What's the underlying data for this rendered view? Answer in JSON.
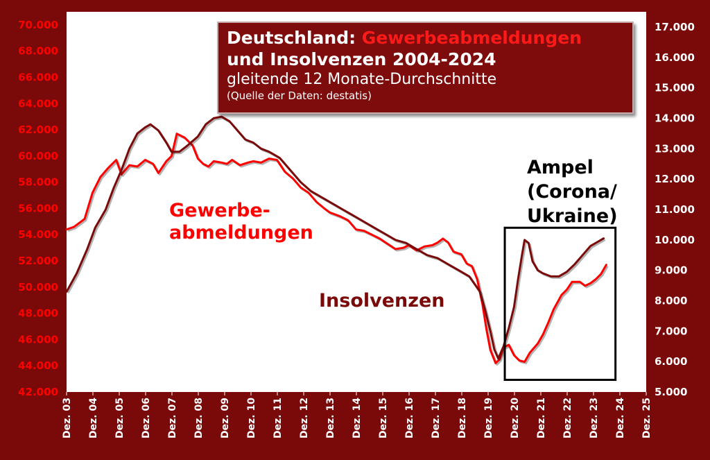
{
  "chart_data": {
    "type": "line",
    "title": "Deutschland: Gewerbeabmeldungen und Insolvenzen 2004-2024",
    "title_parts": {
      "prefix": "Deutschland: ",
      "highlight": "Gewerbeabmeldungen",
      "line2": "und Insolvenzen 2004-2024"
    },
    "subtitle": "gleitende 12 Monate-Durchschnitte",
    "source": "(Quelle der Daten: destatis)",
    "x_tick_labels": [
      "Dez. 03",
      "Dez. 04",
      "Dez. 05",
      "Dez. 06",
      "Dez. 07",
      "Dez. 08",
      "Dez. 09",
      "Dez. 10",
      "Dez. 11",
      "Dez. 12",
      "Dez. 13",
      "Dez. 14",
      "Dez. 15",
      "Dez. 16",
      "Dez. 17",
      "Dez. 18",
      "Dez. 19",
      "Dez. 20",
      "Dez. 21",
      "Dez. 22",
      "Dez. 23",
      "Dez. 24",
      "Dez. 25"
    ],
    "x_range": [
      2003.917,
      2025.917
    ],
    "y_left": {
      "range": [
        42000,
        71000
      ],
      "ticks": [
        42000,
        44000,
        46000,
        48000,
        50000,
        52000,
        54000,
        56000,
        58000,
        60000,
        62000,
        64000,
        66000,
        68000,
        70000
      ],
      "tick_labels": [
        "42.000",
        "44.000",
        "46.000",
        "48.000",
        "50.000",
        "52.000",
        "54.000",
        "56.000",
        "58.000",
        "60.000",
        "62.000",
        "64.000",
        "66.000",
        "68.000",
        "70.000"
      ]
    },
    "y_right": {
      "range": [
        5000,
        17500
      ],
      "ticks": [
        5000,
        6000,
        7000,
        8000,
        9000,
        10000,
        11000,
        12000,
        13000,
        14000,
        15000,
        16000,
        17000
      ],
      "tick_labels": [
        "5.000",
        "6.000",
        "7.000",
        "8.000",
        "9.000",
        "10.000",
        "11.000",
        "12.000",
        "13.000",
        "14.000",
        "15.000",
        "16.000",
        "17.000"
      ]
    },
    "series": [
      {
        "name": "Gewerbeabmeldungen",
        "axis": "left",
        "color": "#ff0000",
        "points": [
          [
            2003.92,
            54400
          ],
          [
            2004.2,
            54600
          ],
          [
            2004.6,
            55200
          ],
          [
            2004.9,
            57200
          ],
          [
            2005.2,
            58400
          ],
          [
            2005.5,
            59100
          ],
          [
            2005.8,
            59700
          ],
          [
            2006.0,
            58600
          ],
          [
            2006.3,
            59300
          ],
          [
            2006.6,
            59200
          ],
          [
            2006.9,
            59700
          ],
          [
            2007.2,
            59400
          ],
          [
            2007.4,
            58700
          ],
          [
            2007.7,
            59600
          ],
          [
            2007.9,
            60000
          ],
          [
            2008.1,
            61700
          ],
          [
            2008.4,
            61400
          ],
          [
            2008.7,
            60800
          ],
          [
            2008.9,
            59800
          ],
          [
            2009.1,
            59400
          ],
          [
            2009.3,
            59200
          ],
          [
            2009.5,
            59600
          ],
          [
            2009.8,
            59500
          ],
          [
            2010.0,
            59400
          ],
          [
            2010.2,
            59700
          ],
          [
            2010.5,
            59300
          ],
          [
            2010.8,
            59500
          ],
          [
            2011.0,
            59600
          ],
          [
            2011.3,
            59500
          ],
          [
            2011.6,
            59800
          ],
          [
            2011.9,
            59700
          ],
          [
            2012.2,
            58800
          ],
          [
            2012.5,
            58300
          ],
          [
            2012.8,
            57600
          ],
          [
            2013.1,
            57200
          ],
          [
            2013.4,
            56500
          ],
          [
            2013.7,
            56000
          ],
          [
            2013.9,
            55700
          ],
          [
            2014.3,
            55400
          ],
          [
            2014.6,
            55100
          ],
          [
            2014.9,
            54400
          ],
          [
            2015.2,
            54300
          ],
          [
            2015.5,
            54000
          ],
          [
            2015.8,
            53700
          ],
          [
            2016.1,
            53300
          ],
          [
            2016.4,
            52900
          ],
          [
            2016.7,
            53000
          ],
          [
            2016.9,
            53200
          ],
          [
            2017.2,
            52800
          ],
          [
            2017.5,
            53100
          ],
          [
            2017.8,
            53200
          ],
          [
            2018.0,
            53400
          ],
          [
            2018.2,
            53700
          ],
          [
            2018.4,
            53400
          ],
          [
            2018.6,
            52700
          ],
          [
            2018.9,
            52500
          ],
          [
            2019.1,
            51800
          ],
          [
            2019.3,
            51600
          ],
          [
            2019.5,
            50600
          ],
          [
            2019.7,
            48700
          ],
          [
            2019.85,
            46800
          ],
          [
            2020.0,
            45200
          ],
          [
            2020.2,
            44200
          ],
          [
            2020.35,
            44500
          ],
          [
            2020.5,
            45400
          ],
          [
            2020.7,
            45600
          ],
          [
            2020.9,
            44800
          ],
          [
            2021.1,
            44400
          ],
          [
            2021.3,
            44300
          ],
          [
            2021.5,
            45000
          ],
          [
            2021.8,
            45700
          ],
          [
            2022.0,
            46400
          ],
          [
            2022.2,
            47300
          ],
          [
            2022.4,
            48300
          ],
          [
            2022.7,
            49400
          ],
          [
            2022.9,
            49800
          ],
          [
            2023.1,
            50400
          ],
          [
            2023.4,
            50400
          ],
          [
            2023.6,
            50100
          ],
          [
            2023.8,
            50300
          ],
          [
            2024.0,
            50600
          ],
          [
            2024.2,
            51000
          ],
          [
            2024.4,
            51700
          ]
        ]
      },
      {
        "name": "Insolvenzen",
        "axis": "right",
        "color": "#7a0a0a",
        "points": [
          [
            2003.92,
            8300
          ],
          [
            2004.3,
            8900
          ],
          [
            2004.7,
            9700
          ],
          [
            2005.0,
            10400
          ],
          [
            2005.4,
            11000
          ],
          [
            2005.7,
            11700
          ],
          [
            2006.0,
            12300
          ],
          [
            2006.3,
            13000
          ],
          [
            2006.6,
            13500
          ],
          [
            2006.9,
            13700
          ],
          [
            2007.1,
            13800
          ],
          [
            2007.4,
            13600
          ],
          [
            2007.7,
            13200
          ],
          [
            2007.9,
            12900
          ],
          [
            2008.2,
            12900
          ],
          [
            2008.5,
            13100
          ],
          [
            2008.9,
            13400
          ],
          [
            2009.2,
            13800
          ],
          [
            2009.5,
            14000
          ],
          [
            2009.8,
            14050
          ],
          [
            2010.1,
            13900
          ],
          [
            2010.4,
            13600
          ],
          [
            2010.7,
            13300
          ],
          [
            2011.0,
            13200
          ],
          [
            2011.3,
            13000
          ],
          [
            2011.6,
            12900
          ],
          [
            2012.0,
            12700
          ],
          [
            2012.4,
            12300
          ],
          [
            2012.8,
            11900
          ],
          [
            2013.2,
            11600
          ],
          [
            2013.6,
            11400
          ],
          [
            2014.0,
            11200
          ],
          [
            2014.4,
            11000
          ],
          [
            2014.8,
            10800
          ],
          [
            2015.2,
            10600
          ],
          [
            2015.6,
            10400
          ],
          [
            2016.0,
            10200
          ],
          [
            2016.4,
            10000
          ],
          [
            2016.8,
            9900
          ],
          [
            2017.2,
            9700
          ],
          [
            2017.6,
            9500
          ],
          [
            2018.0,
            9400
          ],
          [
            2018.4,
            9200
          ],
          [
            2018.8,
            9000
          ],
          [
            2019.2,
            8800
          ],
          [
            2019.6,
            8300
          ],
          [
            2019.8,
            7700
          ],
          [
            2020.0,
            7000
          ],
          [
            2020.15,
            6400
          ],
          [
            2020.3,
            6100
          ],
          [
            2020.5,
            6500
          ],
          [
            2020.7,
            7100
          ],
          [
            2020.9,
            7800
          ],
          [
            2021.05,
            8700
          ],
          [
            2021.2,
            9500
          ],
          [
            2021.3,
            10000
          ],
          [
            2021.45,
            9900
          ],
          [
            2021.6,
            9300
          ],
          [
            2021.8,
            9000
          ],
          [
            2022.0,
            8900
          ],
          [
            2022.3,
            8800
          ],
          [
            2022.6,
            8800
          ],
          [
            2022.9,
            8950
          ],
          [
            2023.2,
            9200
          ],
          [
            2023.5,
            9500
          ],
          [
            2023.8,
            9800
          ],
          [
            2024.1,
            9950
          ],
          [
            2024.3,
            10050
          ]
        ]
      }
    ],
    "annotations": {
      "gewerbe": [
        "Gewerbe-",
        "abmeldungen"
      ],
      "insolvenzen": "Insolvenzen",
      "ampel": [
        "Ampel",
        "(Corona/",
        "Ukraine)"
      ]
    },
    "ampel_box": {
      "x_from": 2020.55,
      "x_to": 2024.75,
      "y_from": 5400,
      "y_to": 10400
    },
    "colors": {
      "background": "#7a0a0a",
      "plot_area": "#ffffff",
      "gewerbe": "#ff0000",
      "insolvenzen": "#7a0a0a",
      "left_axis_text": "#ff0000",
      "right_axis_text": "#ffffff"
    }
  }
}
